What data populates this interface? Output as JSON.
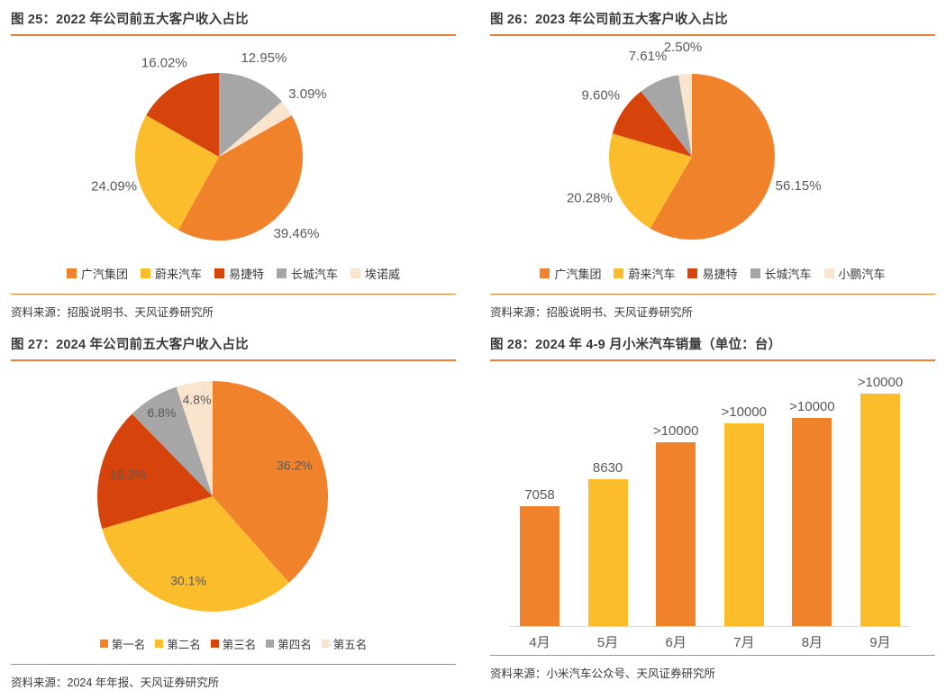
{
  "colors": {
    "accent_rule": "#ED7D31",
    "title_text": "#3B3838",
    "label_text": "#595959",
    "axis_line": "#D9D9D9",
    "orange": "#F0822C",
    "yellow": "#FBBD2B",
    "red": "#D6440B",
    "gray": "#A6A6A6",
    "cream": "#F9E4CE"
  },
  "chart_data": [
    {
      "id": "fig25",
      "type": "pie",
      "title": "图 25：2022 年公司前五大客户收入占比",
      "source": "资料来源：招股说明书、天风证券研究所",
      "legend_position": "bottom",
      "slices": [
        {
          "name": "长城汽车",
          "label": "12.95%",
          "value": 12.95,
          "color": "#A6A6A6"
        },
        {
          "name": "埃诺威",
          "label": "3.09%",
          "value": 3.09,
          "color": "#F9E4CE"
        },
        {
          "name": "广汽集团",
          "label": "39.46%",
          "value": 39.46,
          "color": "#F0822C"
        },
        {
          "name": "蔚来汽车",
          "label": "24.09%",
          "value": 24.09,
          "color": "#FBBD2B"
        },
        {
          "name": "易捷特",
          "label": "16.02%",
          "value": 16.02,
          "color": "#D6440B"
        }
      ],
      "legend": [
        {
          "name": "广汽集团",
          "color": "#F0822C"
        },
        {
          "name": "蔚来汽车",
          "color": "#FBBD2B"
        },
        {
          "name": "易捷特",
          "color": "#D6440B"
        },
        {
          "name": "长城汽车",
          "color": "#A6A6A6"
        },
        {
          "name": "埃诺威",
          "color": "#F9E4CE"
        }
      ]
    },
    {
      "id": "fig26",
      "type": "pie",
      "title": "图 26：2023 年公司前五大客户收入占比",
      "source": "资料来源：招股说明书、天风证券研究所",
      "legend_position": "bottom",
      "slices": [
        {
          "name": "广汽集团",
          "label": "56.15%",
          "value": 56.15,
          "color": "#F0822C"
        },
        {
          "name": "蔚来汽车",
          "label": "20.28%",
          "value": 20.28,
          "color": "#FBBD2B"
        },
        {
          "name": "易捷特",
          "label": "9.60%",
          "value": 9.6,
          "color": "#D6440B"
        },
        {
          "name": "长城汽车",
          "label": "7.61%",
          "value": 7.61,
          "color": "#A6A6A6"
        },
        {
          "name": "小鹏汽车",
          "label": "2.50%",
          "value": 2.5,
          "color": "#F9E4CE"
        }
      ],
      "legend": [
        {
          "name": "广汽集团",
          "color": "#F0822C"
        },
        {
          "name": "蔚来汽车",
          "color": "#FBBD2B"
        },
        {
          "name": "易捷特",
          "color": "#D6440B"
        },
        {
          "name": "长城汽车",
          "color": "#A6A6A6"
        },
        {
          "name": "小鹏汽车",
          "color": "#F9E4CE"
        }
      ]
    },
    {
      "id": "fig27",
      "type": "pie",
      "title": "图 27：2024 年公司前五大客户收入占比",
      "source": "资料来源：2024 年年报、天风证券研究所",
      "legend_position": "bottom",
      "slices": [
        {
          "name": "第一名",
          "label": "36.2%",
          "value": 36.2,
          "color": "#F0822C"
        },
        {
          "name": "第二名",
          "label": "30.1%",
          "value": 30.1,
          "color": "#FBBD2B"
        },
        {
          "name": "第三名",
          "label": "16.2%",
          "value": 16.2,
          "color": "#D6440B"
        },
        {
          "name": "第四名",
          "label": "6.8%",
          "value": 6.8,
          "color": "#A6A6A6"
        },
        {
          "name": "第五名",
          "label": "4.8%",
          "value": 4.8,
          "color": "#F9E4CE"
        }
      ],
      "legend": [
        {
          "name": "第一名",
          "color": "#F0822C"
        },
        {
          "name": "第二名",
          "color": "#FBBD2B"
        },
        {
          "name": "第三名",
          "color": "#D6440B"
        },
        {
          "name": "第四名",
          "color": "#A6A6A6"
        },
        {
          "name": "第五名",
          "color": "#F9E4CE"
        }
      ]
    },
    {
      "id": "fig28",
      "type": "bar",
      "title": "图 28：2024 年 4-9 月小米汽车销量（单位：台）",
      "source": "资料来源：小米汽车公众号、天风证券研究所",
      "categories": [
        "4月",
        "5月",
        "6月",
        "7月",
        "8月",
        "9月"
      ],
      "labels": [
        "7058",
        "8630",
        ">10000",
        ">10000",
        ">10000",
        ">10000"
      ],
      "estimated_values": [
        7058,
        8630,
        10800,
        11900,
        12200,
        13650
      ],
      "bar_colors": [
        "#F0822C",
        "#FBBD2B",
        "#F0822C",
        "#FBBD2B",
        "#F0822C",
        "#FBBD2B"
      ],
      "ylim": [
        0,
        14000
      ],
      "grid": false,
      "legend_position": "none"
    }
  ]
}
